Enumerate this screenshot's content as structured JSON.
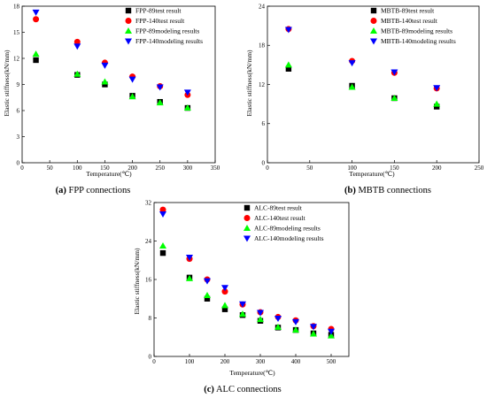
{
  "chart_data": [
    {
      "type": "scatter",
      "caption_letter": "(a)",
      "caption_text": "FPP connections",
      "xlabel": "Temperature(℃)",
      "ylabel": "Elastic stiffness(kN/mm)",
      "xlim": [
        0,
        350
      ],
      "ylim": [
        0,
        18
      ],
      "xticks": [
        0,
        50,
        100,
        150,
        200,
        250,
        300,
        350
      ],
      "yticks": [
        0,
        3,
        6,
        9,
        12,
        15,
        18
      ],
      "grid": false,
      "legend_position": "top-right",
      "series": [
        {
          "name": "FPP-89test result",
          "marker": "square",
          "color": "#000000",
          "x": [
            25,
            100,
            150,
            200,
            250,
            300
          ],
          "y": [
            11.8,
            10.1,
            9.0,
            7.7,
            7.0,
            6.3
          ]
        },
        {
          "name": "FPP-140test result",
          "marker": "circle",
          "color": "#ff0000",
          "x": [
            25,
            100,
            150,
            200,
            250,
            300
          ],
          "y": [
            16.5,
            13.9,
            11.5,
            9.9,
            8.8,
            7.8
          ]
        },
        {
          "name": "FPP-89modeling results",
          "marker": "triangle-up",
          "color": "#00ff00",
          "x": [
            25,
            100,
            150,
            200,
            250,
            300
          ],
          "y": [
            12.5,
            10.2,
            9.3,
            7.6,
            6.9,
            6.3
          ]
        },
        {
          "name": "FPP-140modeling results",
          "marker": "triangle-down",
          "color": "#0000ff",
          "x": [
            25,
            100,
            150,
            200,
            250,
            300
          ],
          "y": [
            17.3,
            13.4,
            11.2,
            9.6,
            8.7,
            8.1
          ]
        }
      ]
    },
    {
      "type": "scatter",
      "caption_letter": "(b)",
      "caption_text": "MBTB connections",
      "xlabel": "Temperature(℃)",
      "ylabel": "Elastic stiffness(kN/mm)",
      "xlim": [
        0,
        250
      ],
      "ylim": [
        0,
        24
      ],
      "xticks": [
        0,
        50,
        100,
        150,
        200,
        250
      ],
      "yticks": [
        0,
        6,
        12,
        18,
        24
      ],
      "grid": false,
      "legend_position": "top-right",
      "series": [
        {
          "name": "MBTB-89test result",
          "marker": "square",
          "color": "#000000",
          "x": [
            25,
            100,
            150,
            200
          ],
          "y": [
            14.4,
            11.8,
            9.9,
            8.6
          ]
        },
        {
          "name": "MBTB-140test result",
          "marker": "circle",
          "color": "#ff0000",
          "x": [
            25,
            100,
            150,
            200
          ],
          "y": [
            20.5,
            15.6,
            13.8,
            11.4
          ]
        },
        {
          "name": "MBTB-89modeling results",
          "marker": "triangle-up",
          "color": "#00ff00",
          "x": [
            25,
            100,
            150,
            200
          ],
          "y": [
            15.0,
            11.6,
            9.9,
            9.0
          ]
        },
        {
          "name": "MBTB-140modeling results",
          "marker": "triangle-down",
          "color": "#0000ff",
          "x": [
            25,
            100,
            150,
            200
          ],
          "y": [
            20.4,
            15.3,
            13.9,
            11.5
          ]
        }
      ]
    },
    {
      "type": "scatter",
      "caption_letter": "(c)",
      "caption_text": "ALC connections",
      "xlabel": "Temperature(℃)",
      "ylabel": "Elastic stiffness(kN/mm)",
      "xlim": [
        0,
        550
      ],
      "ylim": [
        0,
        32
      ],
      "xticks": [
        0,
        100,
        200,
        300,
        400,
        500
      ],
      "yticks": [
        0,
        8,
        16,
        24,
        32
      ],
      "grid": false,
      "legend_position": "top-right",
      "series": [
        {
          "name": "ALC-89test result",
          "marker": "square",
          "color": "#000000",
          "x": [
            25,
            100,
            150,
            200,
            250,
            300,
            350,
            400,
            450,
            500
          ],
          "y": [
            21.5,
            16.4,
            12.0,
            9.8,
            8.6,
            7.4,
            6.0,
            5.5,
            4.8,
            4.5
          ]
        },
        {
          "name": "ALC-140test result",
          "marker": "circle",
          "color": "#ff0000",
          "x": [
            25,
            100,
            150,
            200,
            250,
            300,
            350,
            400,
            450,
            500
          ],
          "y": [
            30.5,
            20.3,
            16.0,
            13.5,
            10.8,
            9.2,
            8.2,
            7.5,
            6.3,
            5.7
          ]
        },
        {
          "name": "ALC-89modeling results",
          "marker": "triangle-up",
          "color": "#00ff00",
          "x": [
            25,
            100,
            150,
            200,
            250,
            300,
            350,
            400,
            450,
            500
          ],
          "y": [
            23.0,
            16.2,
            12.7,
            10.6,
            8.8,
            7.7,
            6.1,
            5.5,
            4.7,
            4.3
          ]
        },
        {
          "name": "ALC-140modeling results",
          "marker": "triangle-down",
          "color": "#0000ff",
          "x": [
            25,
            100,
            150,
            200,
            250,
            300,
            350,
            400,
            450,
            500
          ],
          "y": [
            29.6,
            20.6,
            15.7,
            14.3,
            10.9,
            9.1,
            7.9,
            7.2,
            6.2,
            5.2
          ]
        }
      ]
    }
  ]
}
